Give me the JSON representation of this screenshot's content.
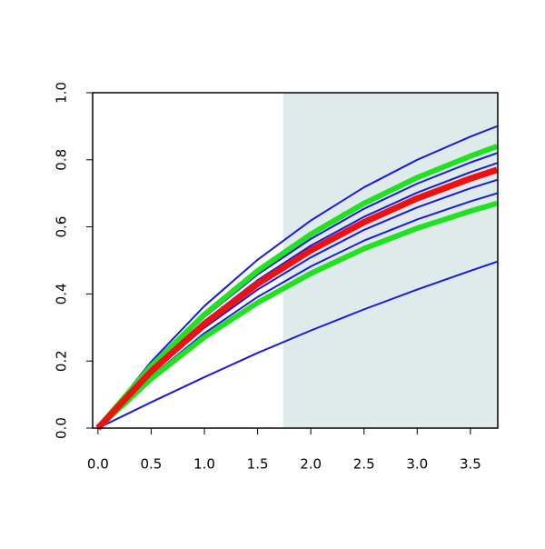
{
  "chart_data": {
    "type": "line",
    "x": [
      0,
      0.5,
      1,
      1.5,
      2,
      2.5,
      3,
      3.5,
      3.75
    ],
    "xlim": [
      -0.05,
      3.757
    ],
    "ylim": [
      0,
      1
    ],
    "xticks": [
      {
        "value": 0,
        "label": "0.0"
      },
      {
        "value": 0.5,
        "label": "0.5"
      },
      {
        "value": 1,
        "label": "1.0"
      },
      {
        "value": 1.5,
        "label": "1.5"
      },
      {
        "value": 2,
        "label": "2.0"
      },
      {
        "value": 2.5,
        "label": "2.5"
      },
      {
        "value": 3,
        "label": "3.0"
      },
      {
        "value": 3.5,
        "label": "3.5"
      }
    ],
    "yticks": [
      {
        "value": 0,
        "label": "0.0"
      },
      {
        "value": 0.2,
        "label": "0.2"
      },
      {
        "value": 0.4,
        "label": "0.4"
      },
      {
        "value": 0.6,
        "label": "0.6"
      },
      {
        "value": 0.8,
        "label": "0.8"
      },
      {
        "value": 1,
        "label": "1.0"
      }
    ],
    "shaded_region": {
      "xmin": 1.74,
      "xmax": 3.757,
      "color": "#dfeaea"
    },
    "series": [
      {
        "color": "#1a1adc",
        "line_width": 2,
        "values": [
          0,
          0.198,
          0.364,
          0.502,
          0.619,
          0.718,
          0.8,
          0.869,
          0.9
        ]
      },
      {
        "color": "#1a1adc",
        "line_width": 2,
        "values": [
          0,
          0.18,
          0.331,
          0.458,
          0.564,
          0.654,
          0.729,
          0.792,
          0.82
        ]
      },
      {
        "color": "#1a1adc",
        "line_width": 2,
        "values": [
          0,
          0.174,
          0.319,
          0.441,
          0.544,
          0.63,
          0.702,
          0.763,
          0.79
        ]
      },
      {
        "color": "#1a1adc",
        "line_width": 2,
        "values": [
          0,
          0.163,
          0.299,
          0.413,
          0.509,
          0.591,
          0.658,
          0.715,
          0.74
        ]
      },
      {
        "color": "#1a1adc",
        "line_width": 2,
        "values": [
          0,
          0.154,
          0.283,
          0.391,
          0.482,
          0.559,
          0.622,
          0.676,
          0.7
        ]
      },
      {
        "color": "#1a1adc",
        "line_width": 2,
        "values": [
          0,
          0.077,
          0.152,
          0.224,
          0.291,
          0.354,
          0.413,
          0.469,
          0.496
        ]
      },
      {
        "color": "#22e022",
        "line_width": 6,
        "values": [
          0,
          0.185,
          0.339,
          0.469,
          0.578,
          0.67,
          0.747,
          0.811,
          0.84
        ]
      },
      {
        "color": "#22e022",
        "line_width": 6,
        "values": [
          0,
          0.147,
          0.271,
          0.374,
          0.461,
          0.535,
          0.596,
          0.647,
          0.67
        ]
      },
      {
        "color": "#ee1111",
        "line_width": 7,
        "values": [
          0,
          0.169,
          0.311,
          0.43,
          0.53,
          0.614,
          0.685,
          0.744,
          0.77
        ]
      }
    ]
  }
}
